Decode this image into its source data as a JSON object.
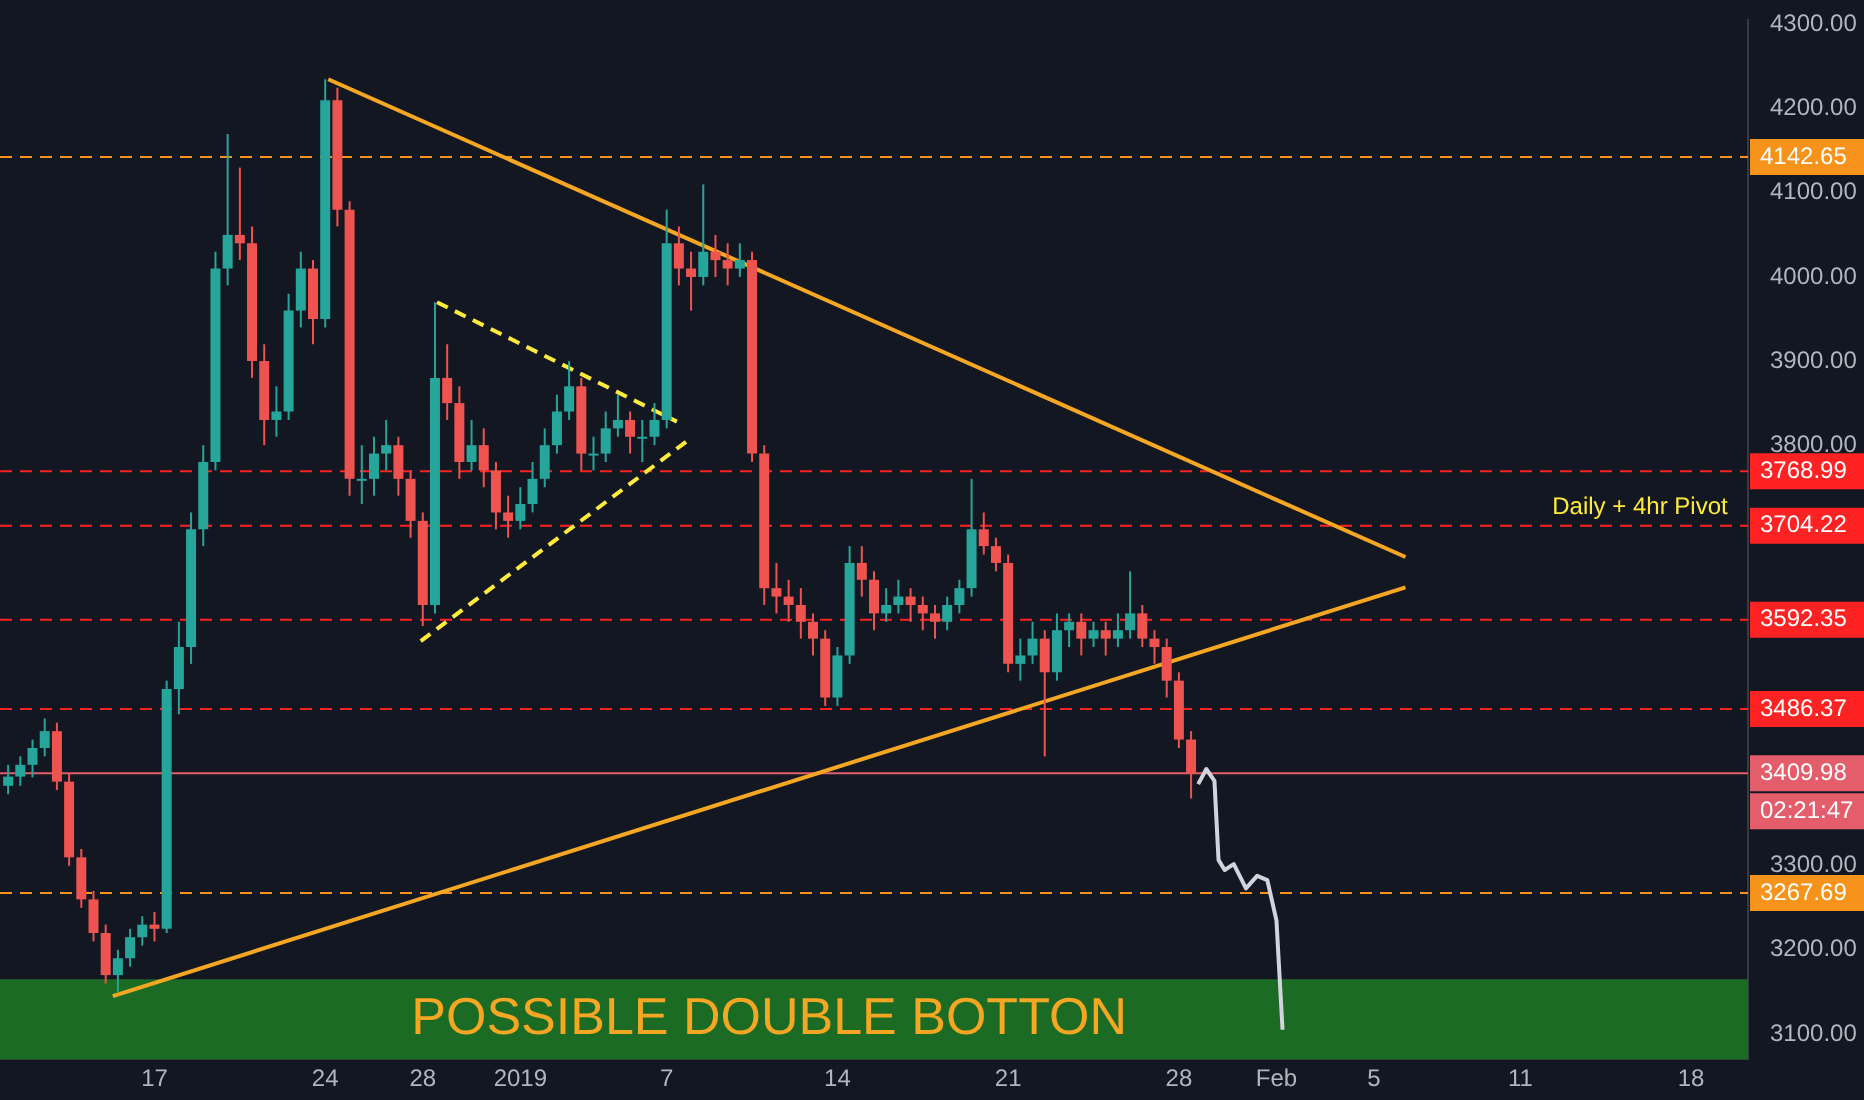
{
  "chart_data": {
    "type": "candlestick",
    "x": [
      "2018-12-11T00:00",
      "2018-12-11T12:00",
      "2018-12-12T00:00",
      "2018-12-12T12:00",
      "2018-12-13T00:00",
      "2018-12-13T12:00",
      "2018-12-14T00:00",
      "2018-12-14T12:00",
      "2018-12-15T00:00",
      "2018-12-15T12:00",
      "2018-12-16T00:00",
      "2018-12-16T12:00",
      "2018-12-17T00:00",
      "2018-12-17T12:00",
      "2018-12-18T00:00",
      "2018-12-18T12:00",
      "2018-12-19T00:00",
      "2018-12-19T12:00",
      "2018-12-20T00:00",
      "2018-12-20T12:00",
      "2018-12-21T00:00",
      "2018-12-21T12:00",
      "2018-12-22T00:00",
      "2018-12-22T12:00",
      "2018-12-23T00:00",
      "2018-12-23T12:00",
      "2018-12-24T00:00",
      "2018-12-24T12:00",
      "2018-12-25T00:00",
      "2018-12-25T12:00",
      "2018-12-26T00:00",
      "2018-12-26T12:00",
      "2018-12-27T00:00",
      "2018-12-27T12:00",
      "2018-12-28T00:00",
      "2018-12-28T12:00",
      "2018-12-29T00:00",
      "2018-12-29T12:00",
      "2018-12-30T00:00",
      "2018-12-30T12:00",
      "2018-12-31T00:00",
      "2018-12-31T12:00",
      "2019-01-01T00:00",
      "2019-01-01T12:00",
      "2019-01-02T00:00",
      "2019-01-02T12:00",
      "2019-01-03T00:00",
      "2019-01-03T12:00",
      "2019-01-04T00:00",
      "2019-01-04T12:00",
      "2019-01-05T00:00",
      "2019-01-05T12:00",
      "2019-01-06T00:00",
      "2019-01-06T12:00",
      "2019-01-07T00:00",
      "2019-01-07T12:00",
      "2019-01-08T00:00",
      "2019-01-08T12:00",
      "2019-01-09T00:00",
      "2019-01-09T12:00",
      "2019-01-10T00:00",
      "2019-01-10T12:00",
      "2019-01-11T00:00",
      "2019-01-11T12:00",
      "2019-01-12T00:00",
      "2019-01-12T12:00",
      "2019-01-13T00:00",
      "2019-01-13T12:00",
      "2019-01-14T00:00",
      "2019-01-14T12:00",
      "2019-01-15T00:00",
      "2019-01-15T12:00",
      "2019-01-16T00:00",
      "2019-01-16T12:00",
      "2019-01-17T00:00",
      "2019-01-17T12:00",
      "2019-01-18T00:00",
      "2019-01-18T12:00",
      "2019-01-19T00:00",
      "2019-01-19T12:00",
      "2019-01-20T00:00",
      "2019-01-20T12:00",
      "2019-01-21T00:00",
      "2019-01-21T12:00",
      "2019-01-22T00:00",
      "2019-01-22T12:00",
      "2019-01-23T00:00",
      "2019-01-23T12:00",
      "2019-01-24T00:00",
      "2019-01-24T12:00",
      "2019-01-25T00:00",
      "2019-01-25T12:00",
      "2019-01-26T00:00",
      "2019-01-26T12:00",
      "2019-01-27T00:00",
      "2019-01-27T12:00",
      "2019-01-28T00:00",
      "2019-01-28T12:00"
    ],
    "ohlc": [
      [
        3395,
        3420,
        3385,
        3406
      ],
      [
        3406,
        3430,
        3395,
        3420
      ],
      [
        3420,
        3450,
        3405,
        3440
      ],
      [
        3440,
        3475,
        3430,
        3460
      ],
      [
        3460,
        3470,
        3390,
        3400
      ],
      [
        3400,
        3410,
        3300,
        3310
      ],
      [
        3310,
        3320,
        3250,
        3260
      ],
      [
        3260,
        3270,
        3210,
        3220
      ],
      [
        3220,
        3230,
        3160,
        3170
      ],
      [
        3170,
        3200,
        3150,
        3190
      ],
      [
        3190,
        3225,
        3180,
        3215
      ],
      [
        3215,
        3240,
        3205,
        3230
      ],
      [
        3230,
        3245,
        3210,
        3225
      ],
      [
        3225,
        3520,
        3220,
        3510
      ],
      [
        3510,
        3590,
        3480,
        3560
      ],
      [
        3560,
        3720,
        3540,
        3700
      ],
      [
        3700,
        3800,
        3680,
        3780
      ],
      [
        3780,
        4030,
        3770,
        4010
      ],
      [
        4010,
        4170,
        3990,
        4050
      ],
      [
        4050,
        4130,
        4020,
        4040
      ],
      [
        4040,
        4060,
        3880,
        3900
      ],
      [
        3900,
        3920,
        3800,
        3830
      ],
      [
        3830,
        3870,
        3810,
        3840
      ],
      [
        3840,
        3980,
        3830,
        3960
      ],
      [
        3960,
        4030,
        3940,
        4010
      ],
      [
        4010,
        4020,
        3920,
        3950
      ],
      [
        3950,
        4235,
        3940,
        4210
      ],
      [
        4210,
        4225,
        4060,
        4080
      ],
      [
        4080,
        4090,
        3740,
        3760
      ],
      [
        3760,
        3800,
        3730,
        3760
      ],
      [
        3760,
        3810,
        3740,
        3790
      ],
      [
        3790,
        3830,
        3770,
        3800
      ],
      [
        3800,
        3810,
        3740,
        3760
      ],
      [
        3760,
        3770,
        3690,
        3710
      ],
      [
        3710,
        3720,
        3585,
        3610
      ],
      [
        3610,
        3970,
        3600,
        3880
      ],
      [
        3880,
        3920,
        3830,
        3850
      ],
      [
        3850,
        3870,
        3760,
        3780
      ],
      [
        3780,
        3830,
        3770,
        3800
      ],
      [
        3800,
        3820,
        3750,
        3770
      ],
      [
        3770,
        3780,
        3700,
        3720
      ],
      [
        3720,
        3740,
        3690,
        3710
      ],
      [
        3710,
        3750,
        3700,
        3730
      ],
      [
        3730,
        3780,
        3720,
        3760
      ],
      [
        3760,
        3820,
        3750,
        3800
      ],
      [
        3800,
        3860,
        3790,
        3840
      ],
      [
        3840,
        3900,
        3830,
        3870
      ],
      [
        3870,
        3880,
        3770,
        3790
      ],
      [
        3790,
        3810,
        3770,
        3790
      ],
      [
        3790,
        3840,
        3780,
        3820
      ],
      [
        3820,
        3860,
        3810,
        3830
      ],
      [
        3830,
        3840,
        3790,
        3810
      ],
      [
        3810,
        3830,
        3780,
        3810
      ],
      [
        3810,
        3850,
        3800,
        3830
      ],
      [
        3830,
        4080,
        3820,
        4040
      ],
      [
        4040,
        4060,
        3990,
        4010
      ],
      [
        4010,
        4030,
        3960,
        4000
      ],
      [
        4000,
        4110,
        3990,
        4030
      ],
      [
        4030,
        4050,
        4000,
        4020
      ],
      [
        4020,
        4040,
        3990,
        4010
      ],
      [
        4010,
        4040,
        4000,
        4020
      ],
      [
        4020,
        4030,
        3780,
        3790
      ],
      [
        3790,
        3800,
        3610,
        3630
      ],
      [
        3630,
        3660,
        3600,
        3620
      ],
      [
        3620,
        3640,
        3590,
        3610
      ],
      [
        3610,
        3630,
        3570,
        3590
      ],
      [
        3590,
        3600,
        3550,
        3570
      ],
      [
        3570,
        3580,
        3490,
        3500
      ],
      [
        3500,
        3560,
        3490,
        3550
      ],
      [
        3550,
        3680,
        3540,
        3660
      ],
      [
        3660,
        3680,
        3620,
        3640
      ],
      [
        3640,
        3650,
        3580,
        3600
      ],
      [
        3600,
        3630,
        3590,
        3610
      ],
      [
        3610,
        3640,
        3600,
        3620
      ],
      [
        3620,
        3630,
        3590,
        3610
      ],
      [
        3610,
        3620,
        3580,
        3600
      ],
      [
        3600,
        3610,
        3570,
        3590
      ],
      [
        3590,
        3620,
        3580,
        3610
      ],
      [
        3610,
        3640,
        3600,
        3630
      ],
      [
        3630,
        3760,
        3620,
        3700
      ],
      [
        3700,
        3720,
        3670,
        3680
      ],
      [
        3680,
        3690,
        3650,
        3660
      ],
      [
        3660,
        3670,
        3530,
        3540
      ],
      [
        3540,
        3570,
        3520,
        3550
      ],
      [
        3550,
        3590,
        3540,
        3570
      ],
      [
        3570,
        3580,
        3430,
        3530
      ],
      [
        3530,
        3600,
        3520,
        3580
      ],
      [
        3580,
        3600,
        3560,
        3590
      ],
      [
        3590,
        3600,
        3550,
        3570
      ],
      [
        3570,
        3590,
        3560,
        3580
      ],
      [
        3580,
        3590,
        3550,
        3570
      ],
      [
        3570,
        3600,
        3560,
        3580
      ],
      [
        3580,
        3650,
        3570,
        3600
      ],
      [
        3600,
        3610,
        3560,
        3570
      ],
      [
        3570,
        3580,
        3540,
        3560
      ],
      [
        3560,
        3570,
        3500,
        3520
      ],
      [
        3520,
        3530,
        3440,
        3450
      ],
      [
        3450,
        3460,
        3380,
        3410
      ]
    ],
    "series": [
      {
        "type": "line",
        "color": "#f5a623",
        "line_style": "solid",
        "x": [
          "2018-12-24T03:00",
          "2019-02-06T07:00"
        ],
        "values": [
          4235,
          3667
        ]
      },
      {
        "type": "line",
        "color": "#f5a623",
        "line_style": "solid",
        "x": [
          "2018-12-15T07:00",
          "2019-02-06T07:00"
        ],
        "values": [
          3145,
          3631
        ]
      },
      {
        "type": "line",
        "color": "#ffeb3b",
        "line_style": "dashed",
        "x": [
          "2018-12-28T14:00",
          "2019-01-07T10:00"
        ],
        "values": [
          3970,
          3828
        ]
      },
      {
        "type": "line",
        "color": "#ffeb3b",
        "line_style": "dashed",
        "x": [
          "2018-12-27T22:00",
          "2019-01-07T19:00"
        ],
        "values": [
          3567,
          3804
        ]
      },
      {
        "type": "line",
        "color": "#d1d4dc",
        "line_style": "solid",
        "x": [
          "2019-01-28T19:00",
          "2019-01-29T03:00",
          "2019-01-29T11:00",
          "2019-01-29T15:00",
          "2019-01-29T21:00",
          "2019-01-30T06:00",
          "2019-01-30T18:00",
          "2019-01-31T05:00",
          "2019-01-31T15:00",
          "2019-02-01T00:00",
          "2019-02-01T06:00"
        ],
        "values": [
          3397,
          3415,
          3401,
          3307,
          3295,
          3302,
          3273,
          3288,
          3283,
          3235,
          3105
        ]
      }
    ],
    "xlim": [
      "2018-12-10T16:00",
      "2019-02-20T08:00"
    ],
    "xticks": [
      {
        "value": "2018-12-17",
        "label": "17"
      },
      {
        "value": "2018-12-24",
        "label": "24"
      },
      {
        "value": "2018-12-28",
        "label": "28"
      },
      {
        "value": "2019-01-01",
        "label": "2019"
      },
      {
        "value": "2019-01-07",
        "label": "7"
      },
      {
        "value": "2019-01-14",
        "label": "14"
      },
      {
        "value": "2019-01-21",
        "label": "21"
      },
      {
        "value": "2019-01-28",
        "label": "28"
      },
      {
        "value": "2019-02-01",
        "label": "Feb"
      },
      {
        "value": "2019-02-05",
        "label": "5"
      },
      {
        "value": "2019-02-11",
        "label": "11"
      },
      {
        "value": "2019-02-18",
        "label": "18"
      }
    ],
    "ylim": [
      3070,
      4305
    ],
    "yticks": [
      {
        "value": 3100,
        "label": "3100.00"
      },
      {
        "value": 3200,
        "label": "3200.00"
      },
      {
        "value": 3300,
        "label": "3300.00"
      },
      {
        "value": 3800,
        "label": "3800.00"
      },
      {
        "value": 3900,
        "label": "3900.00"
      },
      {
        "value": 4000,
        "label": "4000.00"
      },
      {
        "value": 4100,
        "label": "4100.00"
      },
      {
        "value": 4200,
        "label": "4200.00"
      },
      {
        "value": 4300,
        "label": "4300.00"
      }
    ],
    "ref_lines": [
      {
        "axis": "y",
        "value": 4142.65,
        "label": "4142.65",
        "color": "#f7931a",
        "line_style": "dashed"
      },
      {
        "axis": "y",
        "value": 3768.99,
        "label": "3768.99",
        "color": "#ff2222",
        "line_style": "dashed"
      },
      {
        "axis": "y",
        "value": 3704.22,
        "label": "3704.22",
        "color": "#ff2222",
        "line_style": "dashed"
      },
      {
        "axis": "y",
        "value": 3592.35,
        "label": "3592.35",
        "color": "#ff2222",
        "line_style": "dashed"
      },
      {
        "axis": "y",
        "value": 3486.37,
        "label": "3486.37",
        "color": "#ff2222",
        "line_style": "dashed"
      },
      {
        "axis": "y",
        "value": 3409.98,
        "label": "3409.98",
        "color": "#e35d6a",
        "line_style": "solid"
      },
      {
        "axis": "y",
        "value": 3267.69,
        "label": "3267.69",
        "color": "#f7931a",
        "line_style": "dashed"
      }
    ],
    "bands": [
      {
        "axis": "y",
        "from": 3070,
        "to": 3165,
        "label": "POSSIBLE DOUBLE BOTTON",
        "color": "#1b6b24"
      }
    ],
    "annotations": [
      {
        "text": "Daily + 4hr Pivot",
        "x": "2019-02-19T12:00",
        "y": 3704.22
      },
      "02:21:47"
    ],
    "grid": false,
    "legend": false,
    "marker": "none"
  }
}
